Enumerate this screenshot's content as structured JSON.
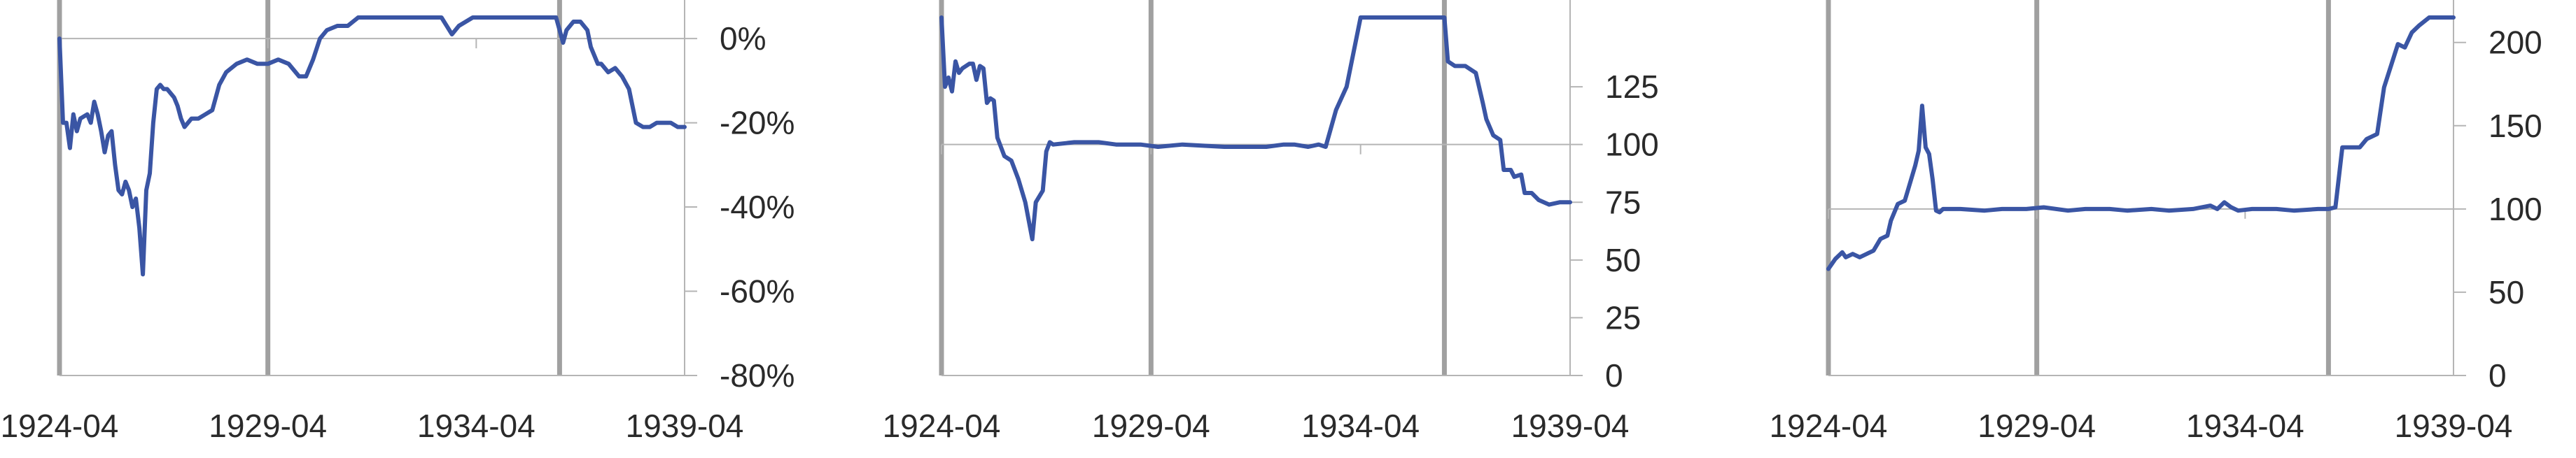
{
  "colors": {
    "series": "#3a55a4",
    "axis": "#b5b5b5",
    "event_line": "#a0a0a0",
    "text": "#2a2a2a"
  },
  "chart_data": [
    {
      "type": "line",
      "grid": false,
      "legend": "none",
      "ylim": [
        -80,
        5
      ],
      "y_ticks": [
        0,
        -20,
        -40,
        -60,
        -80
      ],
      "y_tick_labels": [
        "0%",
        "-20%",
        "-40%",
        "-60%",
        "-80%"
      ],
      "y_axis_side": "right",
      "baseline": 0,
      "x_tick_labels": [
        "1924-04",
        "1929-04",
        "1934-04",
        "1939-04"
      ],
      "x_tick_dates": [
        "1924-04",
        "1929-04",
        "1934-04",
        "1939-04"
      ],
      "event_lines": [
        "1924-04",
        "1929-04",
        "1936-04"
      ],
      "series": [
        {
          "points": [
            [
              "1924-04",
              0
            ],
            [
              "1924-05",
              -20
            ],
            [
              "1924-06",
              -20
            ],
            [
              "1924-07",
              -26
            ],
            [
              "1924-08",
              -18
            ],
            [
              "1924-09",
              -22
            ],
            [
              "1924-10",
              -19
            ],
            [
              "1924-12",
              -18
            ],
            [
              "1925-01",
              -20
            ],
            [
              "1925-02",
              -15
            ],
            [
              "1925-03",
              -18
            ],
            [
              "1925-04",
              -22
            ],
            [
              "1925-05",
              -27
            ],
            [
              "1925-06",
              -23
            ],
            [
              "1925-07",
              -22
            ],
            [
              "1925-08",
              -30
            ],
            [
              "1925-09",
              -36
            ],
            [
              "1925-10",
              -37
            ],
            [
              "1925-11",
              -34
            ],
            [
              "1925-12",
              -36
            ],
            [
              "1926-01",
              -40
            ],
            [
              "1926-02",
              -38
            ],
            [
              "1926-03",
              -45
            ],
            [
              "1926-04",
              -56
            ],
            [
              "1926-05",
              -36
            ],
            [
              "1926-06",
              -32
            ],
            [
              "1926-07",
              -20
            ],
            [
              "1926-08",
              -12
            ],
            [
              "1926-09",
              -11
            ],
            [
              "1926-10",
              -12
            ],
            [
              "1926-11",
              -12
            ],
            [
              "1926-12",
              -13
            ],
            [
              "1927-01",
              -14
            ],
            [
              "1927-02",
              -16
            ],
            [
              "1927-03",
              -19
            ],
            [
              "1927-04",
              -21
            ],
            [
              "1927-05",
              -20
            ],
            [
              "1927-06",
              -19
            ],
            [
              "1927-08",
              -19
            ],
            [
              "1927-10",
              -18
            ],
            [
              "1927-12",
              -17
            ],
            [
              "1928-02",
              -11
            ],
            [
              "1928-04",
              -8
            ],
            [
              "1928-07",
              -6
            ],
            [
              "1928-10",
              -5
            ],
            [
              "1929-01",
              -6
            ],
            [
              "1929-04",
              -6
            ],
            [
              "1929-07",
              -5
            ],
            [
              "1929-10",
              -6
            ],
            [
              "1930-01",
              -9
            ],
            [
              "1930-03",
              -9
            ],
            [
              "1930-05",
              -5
            ],
            [
              "1930-07",
              0
            ],
            [
              "1930-09",
              2
            ],
            [
              "1930-12",
              3
            ],
            [
              "1931-03",
              3
            ],
            [
              "1931-06",
              5
            ],
            [
              "1933-06",
              5
            ],
            [
              "1933-09",
              1
            ],
            [
              "1933-11",
              3
            ],
            [
              "1934-03",
              5
            ],
            [
              "1936-03",
              5
            ],
            [
              "1936-05",
              -1
            ],
            [
              "1936-06",
              2
            ],
            [
              "1936-08",
              4
            ],
            [
              "1936-10",
              4
            ],
            [
              "1936-12",
              2
            ],
            [
              "1937-01",
              -2
            ],
            [
              "1937-03",
              -6
            ],
            [
              "1937-04",
              -6
            ],
            [
              "1937-06",
              -8
            ],
            [
              "1937-08",
              -7
            ],
            [
              "1937-10",
              -9
            ],
            [
              "1937-12",
              -12
            ],
            [
              "1938-02",
              -20
            ],
            [
              "1938-04",
              -21
            ],
            [
              "1938-06",
              -21
            ],
            [
              "1938-08",
              -20
            ],
            [
              "1938-10",
              -20
            ],
            [
              "1938-12",
              -20
            ],
            [
              "1939-02",
              -21
            ],
            [
              "1939-04",
              -21
            ]
          ]
        }
      ]
    },
    {
      "type": "line",
      "grid": false,
      "legend": "none",
      "ylim": [
        0,
        155
      ],
      "y_ticks": [
        0,
        25,
        50,
        75,
        100,
        125
      ],
      "y_tick_labels": [
        "0",
        "25",
        "50",
        "75",
        "100",
        "125"
      ],
      "y_axis_side": "right",
      "baseline": 100,
      "x_tick_labels": [
        "1924-04",
        "1929-04",
        "1934-04",
        "1939-04"
      ],
      "x_tick_dates": [
        "1924-04",
        "1929-04",
        "1934-04",
        "1939-04"
      ],
      "event_lines": [
        "1924-04",
        "1929-04",
        "1936-04"
      ],
      "series": [
        {
          "points": [
            [
              "1924-04",
              155
            ],
            [
              "1924-05",
              125
            ],
            [
              "1924-06",
              129
            ],
            [
              "1924-07",
              123
            ],
            [
              "1924-08",
              136
            ],
            [
              "1924-09",
              131
            ],
            [
              "1924-10",
              133
            ],
            [
              "1924-12",
              135
            ],
            [
              "1925-01",
              135
            ],
            [
              "1925-02",
              128
            ],
            [
              "1925-03",
              134
            ],
            [
              "1925-04",
              133
            ],
            [
              "1925-05",
              118
            ],
            [
              "1925-06",
              120
            ],
            [
              "1925-07",
              119
            ],
            [
              "1925-08",
              103
            ],
            [
              "1925-10",
              95
            ],
            [
              "1925-12",
              93
            ],
            [
              "1926-02",
              85
            ],
            [
              "1926-04",
              75
            ],
            [
              "1926-06",
              59
            ],
            [
              "1926-07",
              75
            ],
            [
              "1926-09",
              80
            ],
            [
              "1926-10",
              97
            ],
            [
              "1926-11",
              101
            ],
            [
              "1926-12",
              100
            ],
            [
              "1927-06",
              101
            ],
            [
              "1928-01",
              101
            ],
            [
              "1928-06",
              100
            ],
            [
              "1929-01",
              100
            ],
            [
              "1929-06",
              99
            ],
            [
              "1930-01",
              100
            ],
            [
              "1931-01",
              99
            ],
            [
              "1932-01",
              99
            ],
            [
              "1932-06",
              100
            ],
            [
              "1932-09",
              100
            ],
            [
              "1933-01",
              99
            ],
            [
              "1933-04",
              100
            ],
            [
              "1933-06",
              99
            ],
            [
              "1933-09",
              115
            ],
            [
              "1933-12",
              125
            ],
            [
              "1934-04",
              155
            ],
            [
              "1936-04",
              155
            ],
            [
              "1936-05",
              136
            ],
            [
              "1936-07",
              134
            ],
            [
              "1936-10",
              134
            ],
            [
              "1937-01",
              131
            ],
            [
              "1937-03",
              118
            ],
            [
              "1937-04",
              111
            ],
            [
              "1937-06",
              104
            ],
            [
              "1937-08",
              102
            ],
            [
              "1937-09",
              89
            ],
            [
              "1937-11",
              89
            ],
            [
              "1937-12",
              86
            ],
            [
              "1938-02",
              87
            ],
            [
              "1938-03",
              79
            ],
            [
              "1938-05",
              79
            ],
            [
              "1938-07",
              76
            ],
            [
              "1938-10",
              74
            ],
            [
              "1939-01",
              75
            ],
            [
              "1939-04",
              75
            ]
          ]
        }
      ]
    },
    {
      "type": "line",
      "grid": false,
      "legend": "none",
      "ylim": [
        0,
        215
      ],
      "y_ticks": [
        0,
        50,
        100,
        150,
        200
      ],
      "y_tick_labels": [
        "0",
        "50",
        "100",
        "150",
        "200"
      ],
      "y_axis_side": "right",
      "baseline": 100,
      "x_tick_labels": [
        "1924-04",
        "1929-04",
        "1934-04",
        "1939-04"
      ],
      "x_tick_dates": [
        "1924-04",
        "1929-04",
        "1934-04",
        "1939-04"
      ],
      "event_lines": [
        "1924-04",
        "1929-04",
        "1936-04"
      ],
      "series": [
        {
          "points": [
            [
              "1924-04",
              64
            ],
            [
              "1924-06",
              70
            ],
            [
              "1924-08",
              74
            ],
            [
              "1924-09",
              71
            ],
            [
              "1924-11",
              73
            ],
            [
              "1925-01",
              71
            ],
            [
              "1925-03",
              73
            ],
            [
              "1925-05",
              75
            ],
            [
              "1925-07",
              82
            ],
            [
              "1925-09",
              84
            ],
            [
              "1925-10",
              93
            ],
            [
              "1925-12",
              103
            ],
            [
              "1926-02",
              105
            ],
            [
              "1926-03",
              112
            ],
            [
              "1926-05",
              126
            ],
            [
              "1926-06",
              135
            ],
            [
              "1926-07",
              162
            ],
            [
              "1926-08",
              137
            ],
            [
              "1926-09",
              133
            ],
            [
              "1926-10",
              118
            ],
            [
              "1926-11",
              99
            ],
            [
              "1926-12",
              98
            ],
            [
              "1927-01",
              100
            ],
            [
              "1927-06",
              100
            ],
            [
              "1928-01",
              99
            ],
            [
              "1928-06",
              100
            ],
            [
              "1929-01",
              100
            ],
            [
              "1929-06",
              101
            ],
            [
              "1930-01",
              99
            ],
            [
              "1930-06",
              100
            ],
            [
              "1931-01",
              100
            ],
            [
              "1931-06",
              99
            ],
            [
              "1932-01",
              100
            ],
            [
              "1932-06",
              99
            ],
            [
              "1933-01",
              100
            ],
            [
              "1933-06",
              102
            ],
            [
              "1933-08",
              100
            ],
            [
              "1933-10",
              104
            ],
            [
              "1933-12",
              101
            ],
            [
              "1934-02",
              99
            ],
            [
              "1934-06",
              100
            ],
            [
              "1935-01",
              100
            ],
            [
              "1935-06",
              99
            ],
            [
              "1936-01",
              100
            ],
            [
              "1936-04",
              100
            ],
            [
              "1936-06",
              101
            ],
            [
              "1936-08",
              137
            ],
            [
              "1936-10",
              137
            ],
            [
              "1937-01",
              137
            ],
            [
              "1937-03",
              142
            ],
            [
              "1937-06",
              145
            ],
            [
              "1937-08",
              173
            ],
            [
              "1937-10",
              186
            ],
            [
              "1937-12",
              199
            ],
            [
              "1938-02",
              197
            ],
            [
              "1938-04",
              206
            ],
            [
              "1938-06",
              210
            ],
            [
              "1938-09",
              215
            ],
            [
              "1939-04",
              215
            ]
          ]
        }
      ]
    }
  ]
}
